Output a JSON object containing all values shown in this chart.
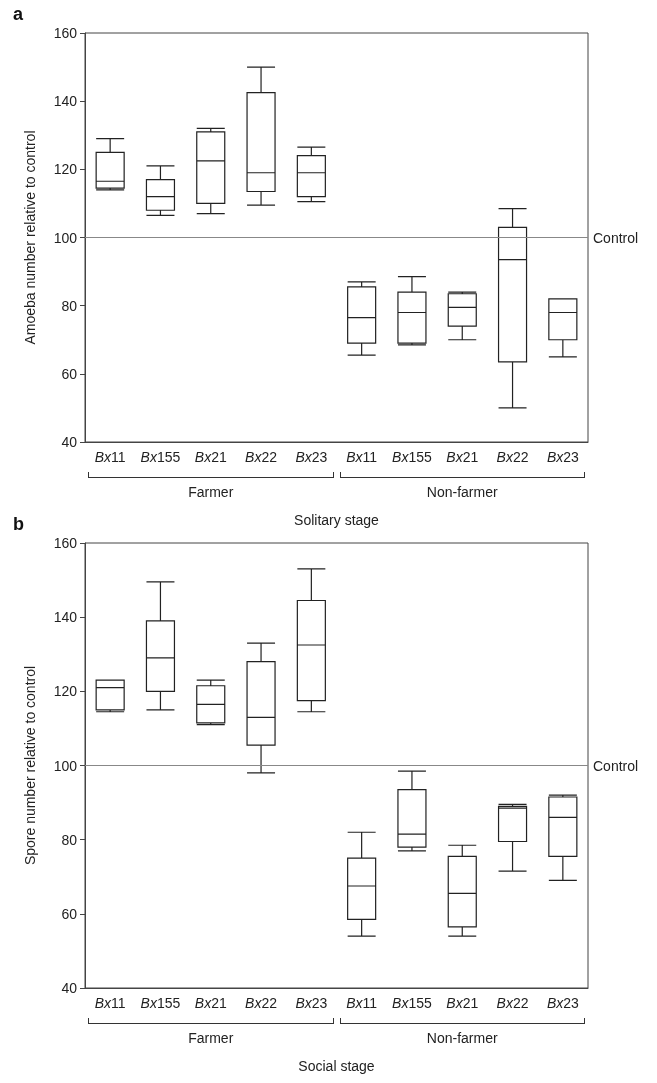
{
  "chart_data": [
    {
      "type": "box",
      "title": "a",
      "xlabel": "Solitary stage",
      "ylabel": "Amoeba number relative to control",
      "categories": [
        "Bx11",
        "Bx155",
        "Bx21",
        "Bx22",
        "Bx23",
        "Bx11",
        "Bx155",
        "Bx21",
        "Bx22",
        "Bx23"
      ],
      "boxes": [
        {
          "low": 114,
          "q1": 114.5,
          "median": 116.5,
          "q3": 125,
          "high": 129
        },
        {
          "low": 106.5,
          "q1": 108,
          "median": 112,
          "q3": 117,
          "high": 121
        },
        {
          "low": 107,
          "q1": 110,
          "median": 122.5,
          "q3": 131,
          "high": 132
        },
        {
          "low": 109.5,
          "q1": 113.5,
          "median": 119,
          "q3": 142.5,
          "high": 150
        },
        {
          "low": 110.5,
          "q1": 112,
          "median": 119,
          "q3": 124,
          "high": 126.5
        },
        {
          "low": 65.5,
          "q1": 69,
          "median": 76.5,
          "q3": 85.5,
          "high": 87
        },
        {
          "low": 68.5,
          "q1": 69,
          "median": 78,
          "q3": 84,
          "high": 88.5
        },
        {
          "low": 70,
          "q1": 74,
          "median": 79.5,
          "q3": 83.5,
          "high": 84
        },
        {
          "low": 50,
          "q1": 63.5,
          "median": 93.5,
          "q3": 103,
          "high": 108.5
        },
        {
          "low": 65,
          "q1": 70,
          "median": 78,
          "q3": 82,
          "high": 82
        }
      ],
      "color": "#222222",
      "ylim": [
        40,
        160
      ],
      "yticks": [
        40,
        60,
        80,
        100,
        120,
        140,
        160
      ],
      "ref_lines": [
        {
          "axis": "y",
          "value": 100,
          "label": "Control",
          "color": "#888888"
        }
      ],
      "annotations": [
        "Farmer",
        "Non-farmer"
      ]
    },
    {
      "type": "box",
      "title": "b",
      "xlabel": "Social stage",
      "ylabel": "Spore number relative to control",
      "categories": [
        "Bx11",
        "Bx155",
        "Bx21",
        "Bx22",
        "Bx23",
        "Bx11",
        "Bx155",
        "Bx21",
        "Bx22",
        "Bx23"
      ],
      "boxes": [
        {
          "low": 114.5,
          "q1": 115,
          "median": 121,
          "q3": 123,
          "high": 123
        },
        {
          "low": 115,
          "q1": 120,
          "median": 129,
          "q3": 139,
          "high": 149.5
        },
        {
          "low": 111,
          "q1": 111.5,
          "median": 116.5,
          "q3": 121.5,
          "high": 123
        },
        {
          "low": 98,
          "q1": 105.5,
          "median": 113,
          "q3": 128,
          "high": 133
        },
        {
          "low": 114.5,
          "q1": 117.5,
          "median": 132.5,
          "q3": 144.5,
          "high": 153
        },
        {
          "low": 54,
          "q1": 58.5,
          "median": 67.5,
          "q3": 75,
          "high": 82
        },
        {
          "low": 77,
          "q1": 78,
          "median": 81.5,
          "q3": 93.5,
          "high": 98.5
        },
        {
          "low": 54,
          "q1": 56.5,
          "median": 65.5,
          "q3": 75.5,
          "high": 78.5
        },
        {
          "low": 71.5,
          "q1": 79.5,
          "median": 88.5,
          "q3": 89,
          "high": 89.5
        },
        {
          "low": 69,
          "q1": 75.5,
          "median": 86,
          "q3": 91.5,
          "high": 92
        }
      ],
      "color": "#222222",
      "ylim": [
        40,
        160
      ],
      "yticks": [
        40,
        60,
        80,
        100,
        120,
        140,
        160
      ],
      "ref_lines": [
        {
          "axis": "y",
          "value": 100,
          "label": "Control",
          "color": "#888888"
        }
      ],
      "annotations": [
        "Farmer",
        "Non-farmer"
      ]
    }
  ]
}
